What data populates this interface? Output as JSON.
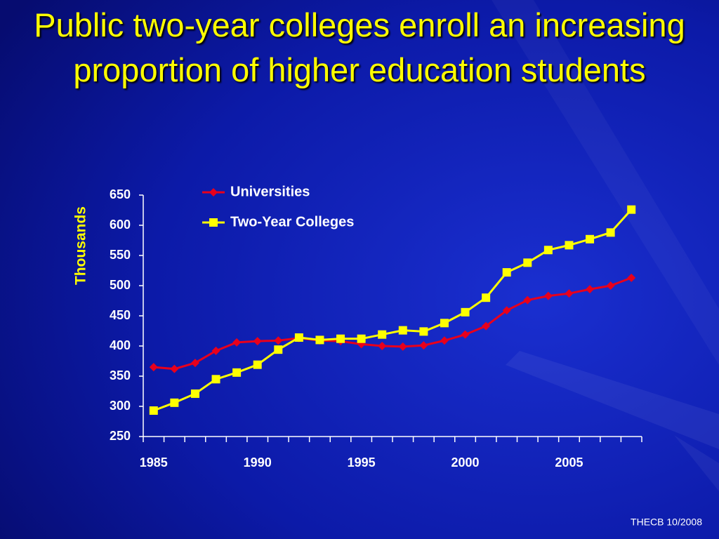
{
  "chart_data": {
    "type": "line",
    "title": "Public two-year colleges enroll an increasing proportion of higher education students",
    "ylabel": "Thousands",
    "footer": "THECB 10/2008",
    "x": [
      1985,
      1986,
      1987,
      1988,
      1989,
      1990,
      1991,
      1992,
      1993,
      1994,
      1995,
      1996,
      1997,
      1998,
      1999,
      2000,
      2001,
      2002,
      2003,
      2004,
      2005,
      2006,
      2007,
      2008
    ],
    "series": [
      {
        "name": "Universities",
        "color": "#e8001c",
        "marker": "diamond",
        "values": [
          365,
          362,
          372,
          392,
          406,
          408,
          409,
          413,
          409,
          408,
          403,
          400,
          399,
          401,
          409,
          419,
          433,
          459,
          476,
          483,
          487,
          494,
          500,
          513
        ]
      },
      {
        "name": "Two-Year Colleges",
        "color": "#ffff00",
        "marker": "square",
        "values": [
          293,
          306,
          321,
          345,
          356,
          369,
          394,
          414,
          410,
          412,
          412,
          419,
          426,
          424,
          438,
          456,
          480,
          522,
          538,
          559,
          567,
          577,
          588,
          626
        ]
      }
    ],
    "xlim": [
      1984.5,
      2008.5
    ],
    "xticks": [
      1985,
      1990,
      1995,
      2000,
      2005
    ],
    "ylim": [
      250,
      650
    ],
    "yticks": [
      250,
      300,
      350,
      400,
      450,
      500,
      550,
      600,
      650
    ],
    "legend": "top"
  }
}
